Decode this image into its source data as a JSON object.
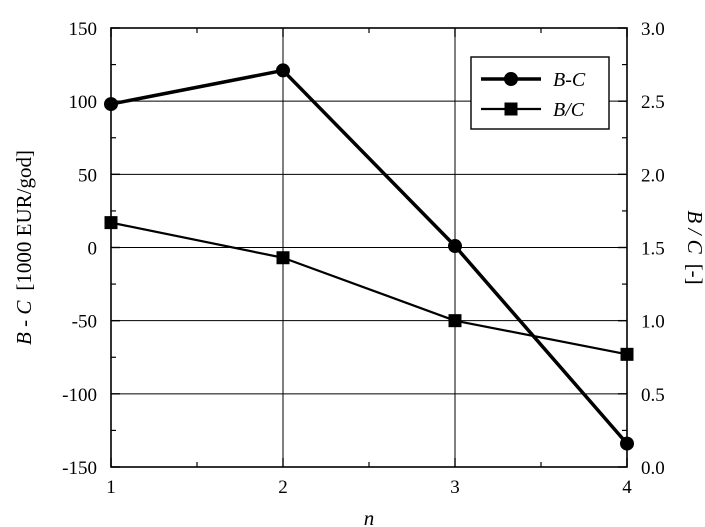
{
  "chart_data": {
    "type": "line",
    "x": [
      1,
      2,
      3,
      4
    ],
    "xlim": [
      1,
      4
    ],
    "xticks": [
      "1",
      "2",
      "3",
      "4"
    ],
    "xlabel": "n",
    "ylim_left": [
      -150,
      150
    ],
    "yticks_left": [
      "-150",
      "-100",
      "-50",
      "0",
      "50",
      "100",
      "150"
    ],
    "ylabel_left": {
      "italic": "B - C",
      "rest": "[1000 EUR/god]"
    },
    "ylim_right": [
      0.0,
      3.0
    ],
    "yticks_right": [
      "0.0",
      "0.5",
      "1.0",
      "1.5",
      "2.0",
      "2.5",
      "3.0"
    ],
    "ylabel_right": {
      "italic": "B / C",
      "rest": "[-]"
    },
    "grid": true,
    "legend_position": "top-right",
    "series": [
      {
        "name": "B-C",
        "axis": "left",
        "marker": "circle",
        "line": "solid",
        "values": [
          98,
          121,
          1,
          -134
        ]
      },
      {
        "name": "B/C",
        "axis": "right",
        "marker": "square",
        "line": "solid",
        "values": [
          1.67,
          1.43,
          1.0,
          0.77
        ]
      }
    ],
    "colors": {
      "line": "#000000",
      "grid": "#000000",
      "background": "#ffffff"
    }
  }
}
